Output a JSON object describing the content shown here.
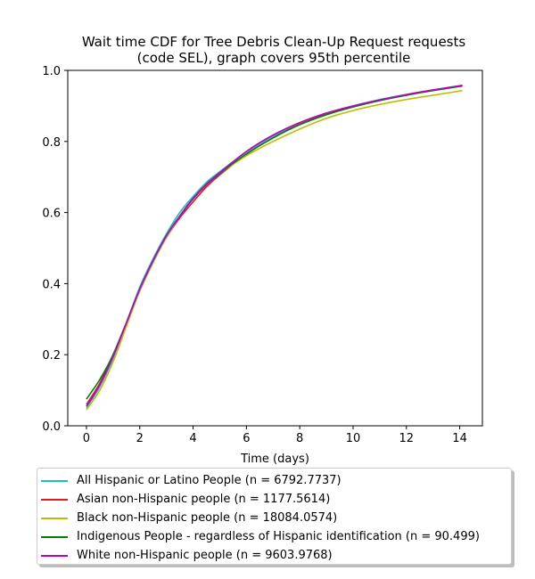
{
  "chart_data": {
    "type": "line",
    "title": "Wait time CDF for Tree Debris Clean-Up Request  requests\n(code SEL), graph covers 95th percentile",
    "xlabel": "Time (days)",
    "ylabel": "",
    "xlim": [
      -0.7,
      14.85
    ],
    "ylim": [
      0,
      1.0
    ],
    "xticks": [
      0,
      2,
      4,
      6,
      8,
      10,
      12,
      14
    ],
    "yticks": [
      0.0,
      0.2,
      0.4,
      0.6,
      0.8,
      1.0
    ],
    "grid": false,
    "legend_position": "below",
    "x": [
      0,
      0.5,
      1,
      1.5,
      2,
      2.5,
      3,
      3.5,
      4,
      4.5,
      5,
      6,
      7,
      8,
      9,
      10,
      11,
      12,
      13,
      14.1
    ],
    "series": [
      {
        "name": "All Hispanic or Latino People (n = 6792.7737)",
        "color": "#17becf",
        "values": [
          0.05,
          0.11,
          0.19,
          0.29,
          0.39,
          0.47,
          0.54,
          0.6,
          0.645,
          0.685,
          0.715,
          0.77,
          0.815,
          0.85,
          0.878,
          0.9,
          0.918,
          0.932,
          0.945,
          0.958
        ]
      },
      {
        "name": "Asian non-Hispanic people (n = 1177.5614)",
        "color": "#e41a1c",
        "values": [
          0.06,
          0.12,
          0.2,
          0.29,
          0.38,
          0.46,
          0.53,
          0.585,
          0.63,
          0.672,
          0.706,
          0.764,
          0.81,
          0.848,
          0.876,
          0.898,
          0.916,
          0.931,
          0.944,
          0.957
        ]
      },
      {
        "name": "Black non-Hispanic people (n = 18084.0574)",
        "color": "#bcbd00",
        "values": [
          0.045,
          0.1,
          0.18,
          0.28,
          0.38,
          0.46,
          0.53,
          0.59,
          0.64,
          0.68,
          0.71,
          0.76,
          0.8,
          0.835,
          0.865,
          0.887,
          0.904,
          0.918,
          0.93,
          0.943
        ]
      },
      {
        "name": "Indigenous People - regardless of Hispanic identification (n = 90.499)",
        "color": "#008000",
        "values": [
          0.075,
          0.13,
          0.2,
          0.29,
          0.385,
          0.465,
          0.535,
          0.59,
          0.638,
          0.678,
          0.71,
          0.765,
          0.81,
          0.847,
          0.875,
          0.897,
          0.915,
          0.93,
          0.943,
          0.956
        ]
      },
      {
        "name": "White non-Hispanic people (n = 9603.9768)",
        "color": "#c000c0",
        "values": [
          0.055,
          0.115,
          0.195,
          0.29,
          0.385,
          0.465,
          0.535,
          0.59,
          0.64,
          0.68,
          0.712,
          0.772,
          0.818,
          0.853,
          0.88,
          0.9,
          0.917,
          0.932,
          0.945,
          0.958
        ]
      }
    ]
  }
}
